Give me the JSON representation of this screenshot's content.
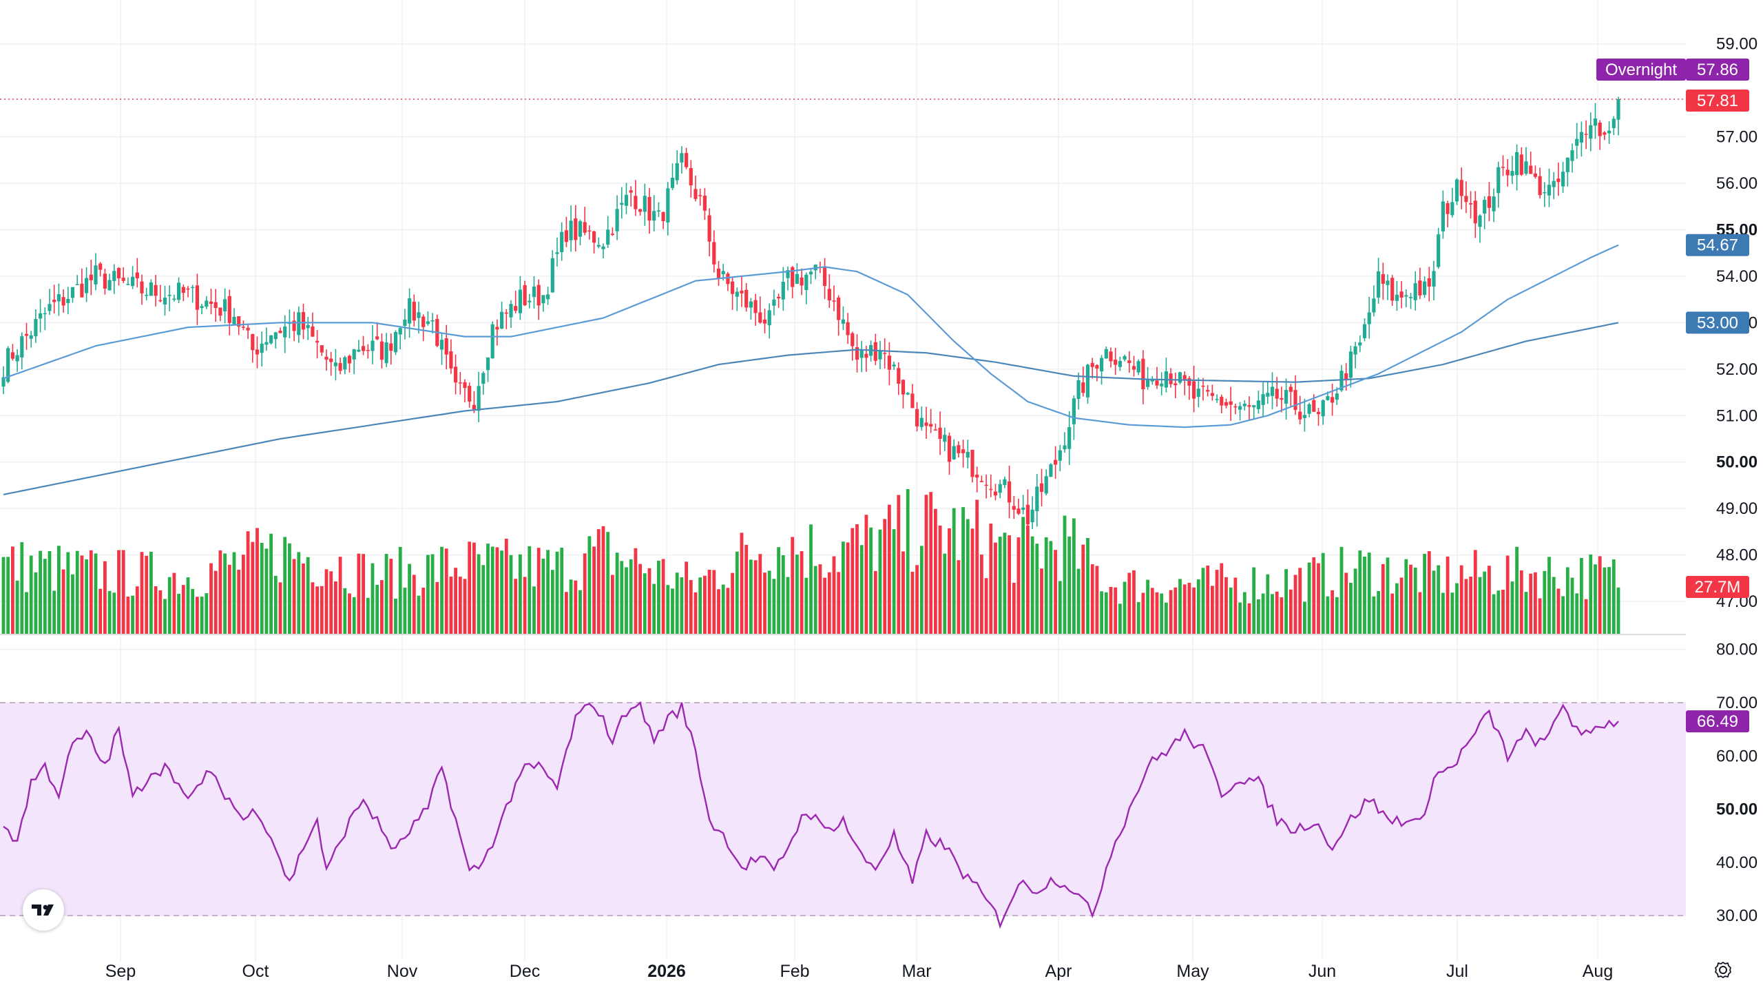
{
  "logo": {
    "icon": "tradingview-logo-icon",
    "text": "TV"
  },
  "settings": {
    "icon": "gear-icon"
  },
  "colors": {
    "up": "#22ab94",
    "up_bar": "#27ae46",
    "down": "#f23645",
    "ma_fast": "#5b9bd5",
    "ma_slow": "#4a86b8",
    "rsi_line": "#9c27b0",
    "rsi_band": "#f3e5fb",
    "overnight_bg": "#8e24aa",
    "last_price_bg": "#f23645",
    "ma_fast_bg": "#3d7ab3",
    "ma_slow_bg": "#3d7ab3",
    "rsi_value_bg": "#8e24aa"
  },
  "badges": {
    "overnight_label": "Overnight",
    "overnight_price": "57.86",
    "last_price": "57.81",
    "ma_fast": "54.67",
    "ma_slow": "53.00",
    "volume": "27.7M",
    "rsi": "66.49"
  },
  "chart_data": {
    "type": "candlestick",
    "price_axis": {
      "ticks": [
        "59.00",
        "57.00",
        "56.00",
        "55.00",
        "54.00",
        "53.00",
        "52.00",
        "51.00",
        "50.00",
        "49.00",
        "48.00",
        "47.00"
      ],
      "bold_ticks": [
        "55.00",
        "50.00"
      ],
      "range": [
        46.6,
        59.5
      ]
    },
    "rsi_axis": {
      "ticks": [
        "80.00",
        "70.00",
        "60.00",
        "50.00",
        "40.00",
        "30.00"
      ],
      "bold_ticks": [
        "50.00"
      ],
      "range": [
        26,
        81
      ],
      "band": [
        30,
        70
      ]
    },
    "time_axis": [
      "Sep",
      "Oct",
      "Nov",
      "Dec",
      "2026",
      "Feb",
      "Mar",
      "Apr",
      "May",
      "Jun",
      "Jul",
      "Aug"
    ],
    "time_axis_bold": [
      "2026"
    ],
    "price_waypoints": [
      [
        0,
        52.1
      ],
      [
        10,
        53.3
      ],
      [
        20,
        54.0
      ],
      [
        30,
        53.7
      ],
      [
        40,
        53.6
      ],
      [
        50,
        53.2
      ],
      [
        54,
        52.4
      ],
      [
        58,
        52.8
      ],
      [
        64,
        53.0
      ],
      [
        68,
        52.5
      ],
      [
        72,
        51.9
      ],
      [
        77,
        52.5
      ],
      [
        83,
        52.4
      ],
      [
        87,
        53.3
      ],
      [
        93,
        53.0
      ],
      [
        98,
        51.5
      ],
      [
        102,
        51.4
      ],
      [
        106,
        52.9
      ],
      [
        112,
        53.5
      ],
      [
        117,
        53.6
      ],
      [
        122,
        55.0
      ],
      [
        130,
        54.8
      ],
      [
        136,
        55.8
      ],
      [
        142,
        55.2
      ],
      [
        147,
        56.4
      ],
      [
        151,
        55.6
      ],
      [
        155,
        54.0
      ],
      [
        160,
        53.5
      ],
      [
        166,
        53.0
      ],
      [
        170,
        53.9
      ],
      [
        176,
        54.1
      ],
      [
        180,
        53.5
      ],
      [
        185,
        52.2
      ],
      [
        190,
        52.5
      ],
      [
        194,
        51.8
      ],
      [
        200,
        50.6
      ],
      [
        206,
        50.2
      ],
      [
        212,
        49.8
      ],
      [
        218,
        49.3
      ],
      [
        222,
        48.8
      ],
      [
        226,
        49.6
      ],
      [
        228,
        50.0
      ],
      [
        233,
        51.5
      ],
      [
        238,
        52.4
      ],
      [
        242,
        52.3
      ],
      [
        247,
        51.8
      ],
      [
        252,
        52.0
      ],
      [
        258,
        51.4
      ],
      [
        264,
        51.3
      ],
      [
        270,
        51.1
      ],
      [
        276,
        51.4
      ],
      [
        282,
        51.1
      ],
      [
        285,
        50.9
      ],
      [
        290,
        51.8
      ],
      [
        294,
        52.5
      ],
      [
        298,
        53.9
      ],
      [
        302,
        53.5
      ],
      [
        306,
        53.8
      ],
      [
        309,
        53.6
      ],
      [
        312,
        55.4
      ],
      [
        316,
        56.0
      ],
      [
        320,
        55.2
      ],
      [
        324,
        56.1
      ],
      [
        328,
        56.6
      ],
      [
        332,
        56.0
      ],
      [
        336,
        55.8
      ],
      [
        340,
        56.6
      ],
      [
        344,
        57.5
      ],
      [
        347,
        57.0
      ],
      [
        350,
        57.81
      ]
    ],
    "rsi_waypoints": [
      [
        0,
        47
      ],
      [
        3,
        44
      ],
      [
        6,
        55
      ],
      [
        9,
        58
      ],
      [
        12,
        53
      ],
      [
        15,
        62
      ],
      [
        18,
        64
      ],
      [
        22,
        58
      ],
      [
        25,
        65
      ],
      [
        28,
        52
      ],
      [
        32,
        57
      ],
      [
        36,
        58
      ],
      [
        40,
        51
      ],
      [
        44,
        57
      ],
      [
        48,
        53
      ],
      [
        52,
        48
      ],
      [
        55,
        50
      ],
      [
        58,
        45
      ],
      [
        62,
        36
      ],
      [
        65,
        43
      ],
      [
        68,
        48
      ],
      [
        70,
        38
      ],
      [
        74,
        46
      ],
      [
        78,
        52
      ],
      [
        82,
        46
      ],
      [
        85,
        42
      ],
      [
        88,
        46
      ],
      [
        92,
        50
      ],
      [
        95,
        58
      ],
      [
        98,
        48
      ],
      [
        101,
        38
      ],
      [
        104,
        40
      ],
      [
        108,
        48
      ],
      [
        112,
        57
      ],
      [
        116,
        58
      ],
      [
        120,
        54
      ],
      [
        124,
        67
      ],
      [
        128,
        70
      ],
      [
        132,
        63
      ],
      [
        136,
        70
      ],
      [
        138,
        69
      ],
      [
        141,
        63
      ],
      [
        144,
        67
      ],
      [
        147,
        69
      ],
      [
        150,
        61
      ],
      [
        153,
        48
      ],
      [
        157,
        44
      ],
      [
        160,
        39
      ],
      [
        164,
        41
      ],
      [
        167,
        38
      ],
      [
        170,
        43
      ],
      [
        174,
        50
      ],
      [
        178,
        46
      ],
      [
        182,
        48
      ],
      [
        186,
        41
      ],
      [
        189,
        39
      ],
      [
        193,
        45
      ],
      [
        197,
        36
      ],
      [
        200,
        45
      ],
      [
        204,
        43
      ],
      [
        208,
        38
      ],
      [
        212,
        34
      ],
      [
        216,
        29
      ],
      [
        220,
        36
      ],
      [
        224,
        35
      ],
      [
        228,
        37
      ],
      [
        232,
        35
      ],
      [
        236,
        30
      ],
      [
        240,
        42
      ],
      [
        244,
        50
      ],
      [
        248,
        58
      ],
      [
        252,
        61
      ],
      [
        256,
        64
      ],
      [
        260,
        61
      ],
      [
        264,
        53
      ],
      [
        268,
        56
      ],
      [
        272,
        55
      ],
      [
        276,
        48
      ],
      [
        280,
        46
      ],
      [
        284,
        48
      ],
      [
        288,
        43
      ],
      [
        292,
        48
      ],
      [
        296,
        52
      ],
      [
        300,
        48
      ],
      [
        304,
        48
      ],
      [
        307,
        47
      ],
      [
        310,
        56
      ],
      [
        314,
        58
      ],
      [
        318,
        63
      ],
      [
        322,
        68
      ],
      [
        326,
        60
      ],
      [
        330,
        64
      ],
      [
        334,
        62
      ],
      [
        338,
        70
      ],
      [
        342,
        63
      ],
      [
        346,
        66
      ],
      [
        350,
        66.49
      ]
    ],
    "volume_waypoints": [
      [
        0,
        17
      ],
      [
        20,
        15
      ],
      [
        40,
        14
      ],
      [
        60,
        20
      ],
      [
        70,
        18
      ],
      [
        80,
        14
      ],
      [
        100,
        17
      ],
      [
        120,
        16
      ],
      [
        130,
        20
      ],
      [
        150,
        12
      ],
      [
        165,
        22
      ],
      [
        180,
        20
      ],
      [
        200,
        26
      ],
      [
        210,
        24
      ],
      [
        220,
        20
      ],
      [
        230,
        22
      ],
      [
        240,
        12
      ],
      [
        260,
        12
      ],
      [
        280,
        13
      ],
      [
        295,
        16
      ],
      [
        310,
        14
      ],
      [
        330,
        15
      ],
      [
        350,
        14
      ]
    ],
    "ma_fast_waypoints": [
      [
        0,
        51.8
      ],
      [
        20,
        52.5
      ],
      [
        40,
        52.9
      ],
      [
        60,
        53.0
      ],
      [
        80,
        53.0
      ],
      [
        100,
        52.7
      ],
      [
        110,
        52.7
      ],
      [
        120,
        52.9
      ],
      [
        130,
        53.1
      ],
      [
        150,
        53.9
      ],
      [
        170,
        54.1
      ],
      [
        178,
        54.2
      ],
      [
        185,
        54.1
      ],
      [
        196,
        53.6
      ],
      [
        206,
        52.6
      ],
      [
        214,
        51.9
      ],
      [
        222,
        51.3
      ],
      [
        232,
        50.95
      ],
      [
        244,
        50.8
      ],
      [
        256,
        50.75
      ],
      [
        266,
        50.8
      ],
      [
        274,
        51.0
      ],
      [
        282,
        51.3
      ],
      [
        290,
        51.6
      ],
      [
        298,
        51.9
      ],
      [
        306,
        52.3
      ],
      [
        316,
        52.8
      ],
      [
        326,
        53.5
      ],
      [
        336,
        54.0
      ],
      [
        344,
        54.4
      ],
      [
        350,
        54.67
      ]
    ],
    "ma_slow_waypoints": [
      [
        0,
        49.3
      ],
      [
        20,
        49.7
      ],
      [
        40,
        50.1
      ],
      [
        60,
        50.5
      ],
      [
        80,
        50.8
      ],
      [
        100,
        51.1
      ],
      [
        120,
        51.3
      ],
      [
        140,
        51.7
      ],
      [
        155,
        52.1
      ],
      [
        170,
        52.3
      ],
      [
        185,
        52.42
      ],
      [
        200,
        52.35
      ],
      [
        215,
        52.15
      ],
      [
        232,
        51.85
      ],
      [
        248,
        51.78
      ],
      [
        264,
        51.75
      ],
      [
        280,
        51.72
      ],
      [
        296,
        51.8
      ],
      [
        312,
        52.1
      ],
      [
        330,
        52.6
      ],
      [
        350,
        53.0
      ]
    ]
  }
}
